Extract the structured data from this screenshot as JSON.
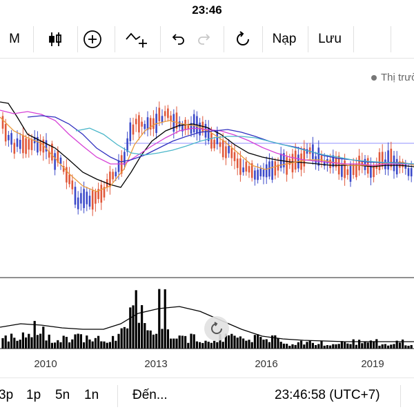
{
  "status_bar": {
    "time": "23:46"
  },
  "toolbar": {
    "interval_label": "M",
    "undo_icon": "undo-icon",
    "redo_icon": "redo-icon",
    "load_label": "Nạp",
    "save_label": "Lưu"
  },
  "chart": {
    "status_text": "Thị trườ",
    "x_labels": [
      "2010",
      "2013",
      "2016",
      "2019"
    ],
    "colors": {
      "up": "#3b49c9",
      "down": "#e0583a",
      "ma_black": "#000000",
      "ma_orange": "#e89a3c",
      "ma_pink": "#d63fd6",
      "ma_blue": "#2f2fbf",
      "ma_cyan": "#49b6c9",
      "hline": "#8f8fff"
    }
  },
  "bottom_bar": {
    "ranges": [
      "3p",
      "1p",
      "5n",
      "1n"
    ],
    "goto_label": "Đến...",
    "clock": "23:46:58 (UTC+7)"
  }
}
